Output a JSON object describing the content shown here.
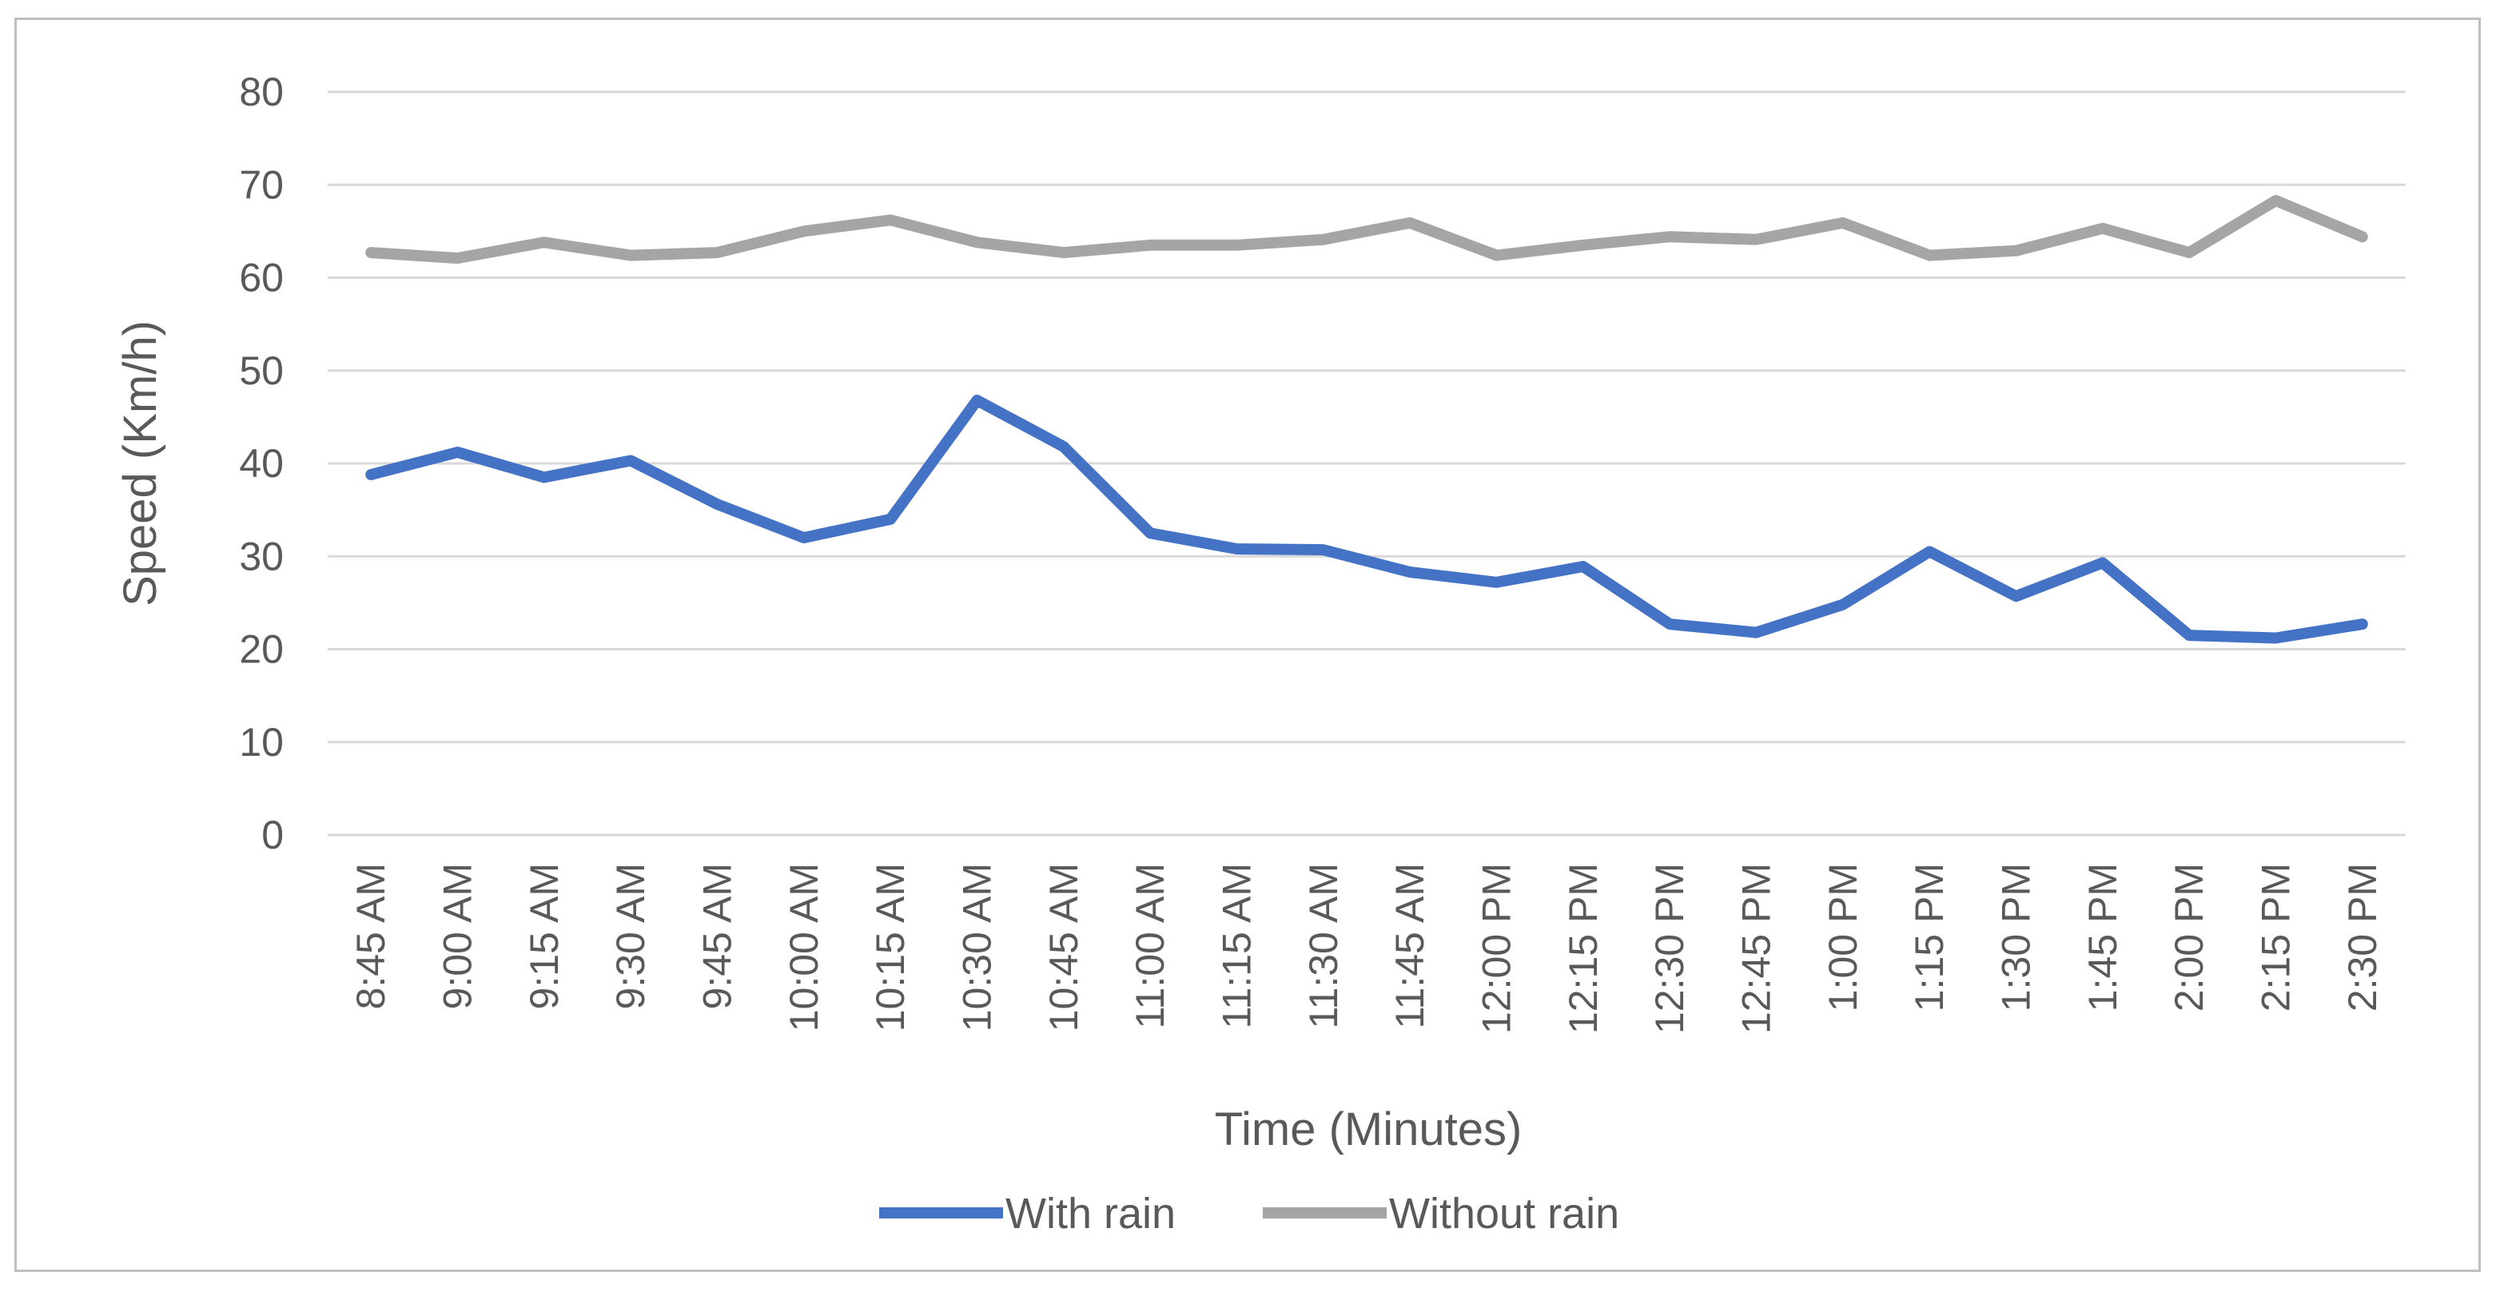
{
  "chart_data": {
    "type": "line",
    "title": "",
    "xlabel": "Time (Minutes)",
    "ylabel": "Speed (Km/h)",
    "ylim": [
      0,
      80
    ],
    "yticks": [
      0,
      10,
      20,
      30,
      40,
      50,
      60,
      70,
      80
    ],
    "grid": true,
    "legend_position": "bottom",
    "categories": [
      "8:45 AM",
      "9:00 AM",
      "9:15 AM",
      "9:30 AM",
      "9:45 AM",
      "10:00 AM",
      "10:15 AM",
      "10:30 AM",
      "10:45 AM",
      "11:00 AM",
      "11:15 AM",
      "11:30 AM",
      "11:45 AM",
      "12:00 PM",
      "12:15 PM",
      "12:30 PM",
      "12:45 PM",
      "1:00 PM",
      "1:15 PM",
      "1:30 PM",
      "1:45 PM",
      "2:00 PM",
      "2:15 PM",
      "2:30 PM"
    ],
    "series": [
      {
        "name": "With rain",
        "color": "#4472c4",
        "values": [
          38.8,
          41.2,
          38.5,
          40.3,
          35.6,
          32.0,
          34.0,
          46.8,
          41.8,
          32.5,
          30.8,
          30.7,
          28.3,
          27.2,
          28.9,
          22.7,
          21.8,
          24.8,
          30.5,
          25.7,
          29.3,
          21.5,
          21.2,
          22.7
        ]
      },
      {
        "name": "Without rain",
        "color": "#a5a5a5",
        "values": [
          62.7,
          62.1,
          63.8,
          62.4,
          62.7,
          65.0,
          66.2,
          63.8,
          62.7,
          63.5,
          63.5,
          64.1,
          65.9,
          62.4,
          63.5,
          64.4,
          64.1,
          65.9,
          62.4,
          62.9,
          65.3,
          62.7,
          68.3,
          64.4
        ]
      }
    ]
  }
}
